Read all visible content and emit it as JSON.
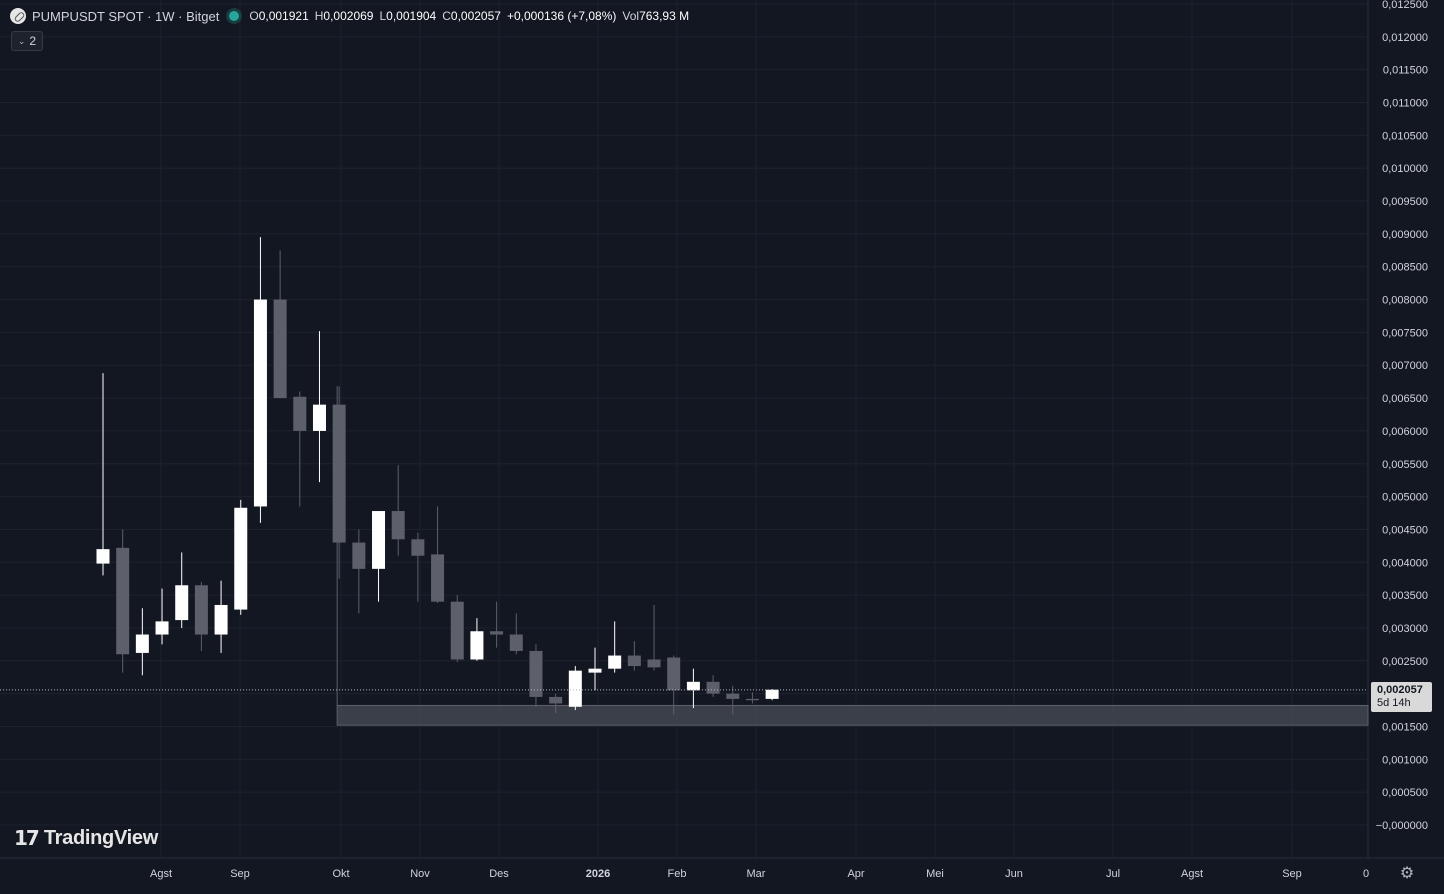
{
  "legend": {
    "title": "PUMPUSDT SPOT · 1W · Bitget",
    "open_label": "O",
    "open": "0,001921",
    "high_label": "H",
    "high": "0,002069",
    "low_label": "L",
    "low": "0,001904",
    "close_label": "C",
    "close": "0,002057",
    "change": "+0,000136 (+7,08%)",
    "vol_label": "Vol",
    "vol": "763,93 M"
  },
  "indicators_toggle": "2",
  "price_tag": {
    "price": "0,002057",
    "countdown": "5d 14h"
  },
  "logo_text": "TradingView",
  "colors": {
    "background": "#131722",
    "up": "#ffffff",
    "down": "#5d606b",
    "grid": "#1e222d",
    "text": "#d1d4dc"
  },
  "chart_data": {
    "type": "candlestick",
    "symbol": "PUMPUSDT",
    "timeframe": "1W",
    "y_range": [
      0,
      0.0125
    ],
    "y_ticks": [
      "0,012500",
      "0,012000",
      "0,011500",
      "0,011000",
      "0,010500",
      "0,010000",
      "0,009500",
      "0,009000",
      "0,008500",
      "0,008000",
      "0,007500",
      "0,007000",
      "0,006500",
      "0,006000",
      "0,005500",
      "0,005000",
      "0,004500",
      "0,004000",
      "0,003500",
      "0,003000",
      "0,002500",
      "0,002000",
      "0,001500",
      "0,001000",
      "0,000500",
      "−0,000000"
    ],
    "x_labels": [
      "Agst",
      "Sep",
      "Okt",
      "Nov",
      "Des",
      "2026",
      "Feb",
      "Mar",
      "Apr",
      "Mei",
      "Jun",
      "Jul",
      "Agst",
      "Sep",
      "0"
    ],
    "current_price": 0.002057,
    "zone": {
      "low": 0.00152,
      "high": 0.00182
    },
    "candles": [
      {
        "o": 0.00398,
        "h": 0.00688,
        "l": 0.0038,
        "c": 0.0042
      },
      {
        "o": 0.00422,
        "h": 0.0045,
        "l": 0.00232,
        "c": 0.0026
      },
      {
        "o": 0.00262,
        "h": 0.0033,
        "l": 0.00228,
        "c": 0.0029
      },
      {
        "o": 0.0029,
        "h": 0.0036,
        "l": 0.00275,
        "c": 0.0031
      },
      {
        "o": 0.00312,
        "h": 0.00415,
        "l": 0.003,
        "c": 0.00365
      },
      {
        "o": 0.00365,
        "h": 0.0037,
        "l": 0.00265,
        "c": 0.0029
      },
      {
        "o": 0.0029,
        "h": 0.00372,
        "l": 0.00262,
        "c": 0.00335
      },
      {
        "o": 0.00328,
        "h": 0.00495,
        "l": 0.0032,
        "c": 0.00483
      },
      {
        "o": 0.00485,
        "h": 0.00895,
        "l": 0.0046,
        "c": 0.008
      },
      {
        "o": 0.008,
        "h": 0.00875,
        "l": 0.0065,
        "c": 0.0065
      },
      {
        "o": 0.00652,
        "h": 0.0066,
        "l": 0.00485,
        "c": 0.006
      },
      {
        "o": 0.006,
        "h": 0.00752,
        "l": 0.00522,
        "c": 0.0064
      },
      {
        "o": 0.0064,
        "h": 0.00668,
        "l": 0.00375,
        "c": 0.0043
      },
      {
        "o": 0.0043,
        "h": 0.0045,
        "l": 0.00322,
        "c": 0.0039
      },
      {
        "o": 0.0039,
        "h": 0.00478,
        "l": 0.0034,
        "c": 0.00478
      },
      {
        "o": 0.00478,
        "h": 0.00548,
        "l": 0.0041,
        "c": 0.00435
      },
      {
        "o": 0.00435,
        "h": 0.00445,
        "l": 0.0034,
        "c": 0.0041
      },
      {
        "o": 0.00412,
        "h": 0.00485,
        "l": 0.00338,
        "c": 0.0034
      },
      {
        "o": 0.0034,
        "h": 0.0035,
        "l": 0.00248,
        "c": 0.00252
      },
      {
        "o": 0.00252,
        "h": 0.00315,
        "l": 0.0025,
        "c": 0.00295
      },
      {
        "o": 0.00295,
        "h": 0.0034,
        "l": 0.0027,
        "c": 0.0029
      },
      {
        "o": 0.0029,
        "h": 0.00322,
        "l": 0.0026,
        "c": 0.00265
      },
      {
        "o": 0.00265,
        "h": 0.00275,
        "l": 0.0018,
        "c": 0.00195
      },
      {
        "o": 0.00195,
        "h": 0.002,
        "l": 0.0017,
        "c": 0.00185
      },
      {
        "o": 0.0018,
        "h": 0.00242,
        "l": 0.00175,
        "c": 0.00235
      },
      {
        "o": 0.00232,
        "h": 0.0027,
        "l": 0.00205,
        "c": 0.00238
      },
      {
        "o": 0.00238,
        "h": 0.0031,
        "l": 0.00232,
        "c": 0.00258
      },
      {
        "o": 0.00258,
        "h": 0.0028,
        "l": 0.00235,
        "c": 0.00242
      },
      {
        "o": 0.00252,
        "h": 0.00335,
        "l": 0.00235,
        "c": 0.0024
      },
      {
        "o": 0.00255,
        "h": 0.00258,
        "l": 0.00168,
        "c": 0.00205
      },
      {
        "o": 0.00205,
        "h": 0.00238,
        "l": 0.00178,
        "c": 0.00218
      },
      {
        "o": 0.00218,
        "h": 0.00228,
        "l": 0.00195,
        "c": 0.002
      },
      {
        "o": 0.002,
        "h": 0.00212,
        "l": 0.00168,
        "c": 0.00192
      },
      {
        "o": 0.00192,
        "h": 0.00202,
        "l": 0.00185,
        "c": 0.0019
      },
      {
        "o": 0.00192,
        "h": 0.00207,
        "l": 0.0019,
        "c": 0.00206
      }
    ]
  }
}
